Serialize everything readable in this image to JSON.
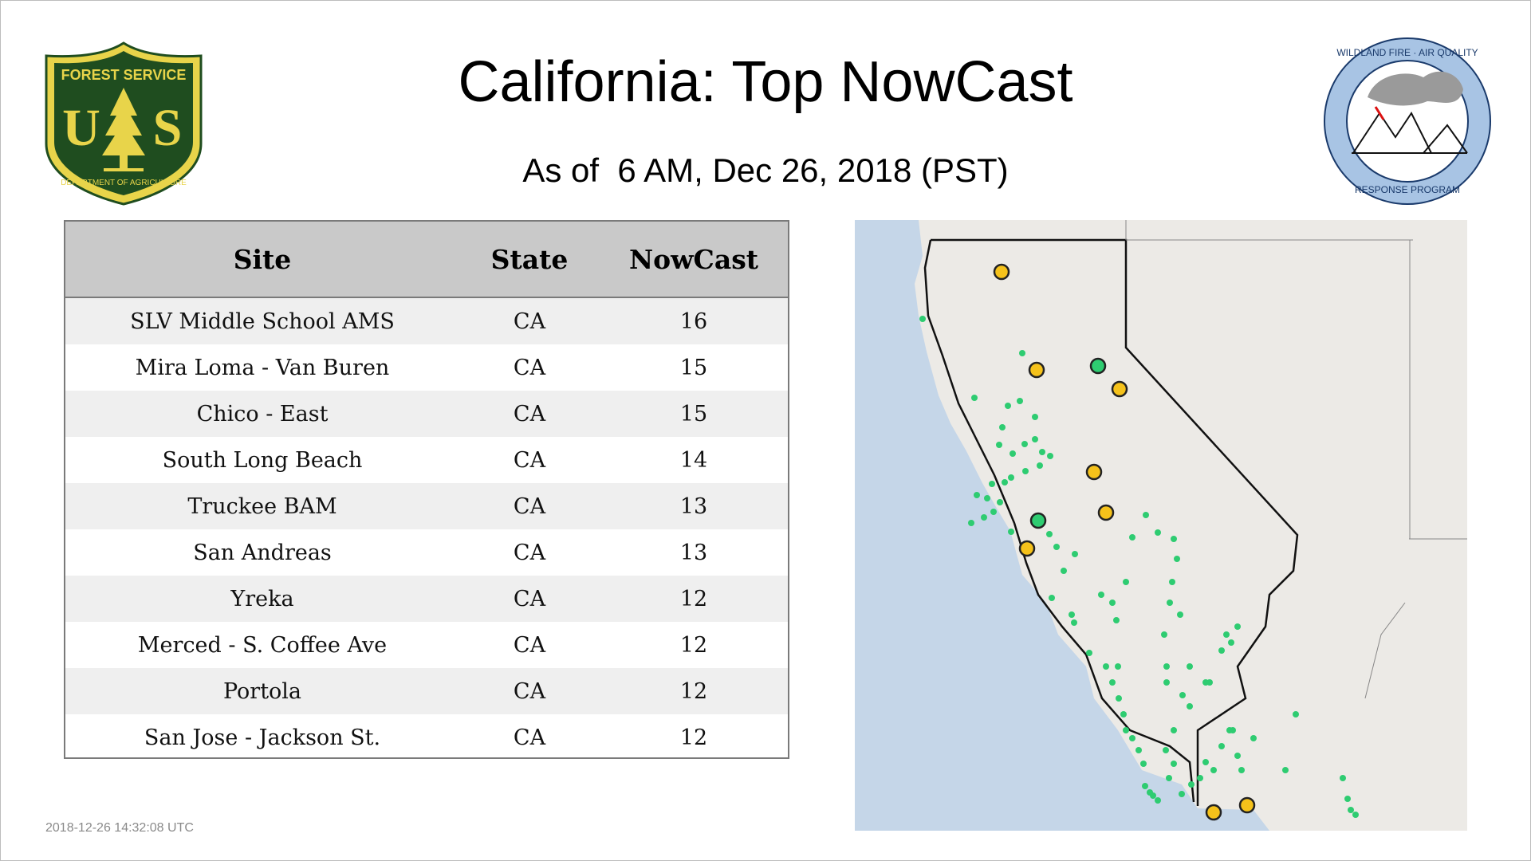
{
  "header": {
    "title": "California: Top NowCast",
    "subtitle": "As of  6 AM, Dec 26, 2018 (PST)"
  },
  "logos": {
    "left": {
      "top_text": "FOREST SERVICE",
      "letters": "US",
      "bottom_text": "DEPARTMENT OF AGRICULTURE",
      "colors": {
        "field": "#1f4d1f",
        "gold": "#e8d44a"
      }
    },
    "right": {
      "top_text": "WILDLAND FIRE · AIR QUALITY",
      "bottom_text": "RESPONSE PROGRAM",
      "colors": {
        "ring": "#a8c4e4",
        "text": "#1a3a6b"
      }
    }
  },
  "table": {
    "columns": [
      "Site",
      "State",
      "NowCast"
    ],
    "rows": [
      {
        "site": "SLV Middle School AMS",
        "state": "CA",
        "nowcast": "16"
      },
      {
        "site": "Mira Loma - Van Buren",
        "state": "CA",
        "nowcast": "15"
      },
      {
        "site": "Chico - East",
        "state": "CA",
        "nowcast": "15"
      },
      {
        "site": "South Long Beach",
        "state": "CA",
        "nowcast": "14"
      },
      {
        "site": "Truckee BAM",
        "state": "CA",
        "nowcast": "13"
      },
      {
        "site": "San Andreas",
        "state": "CA",
        "nowcast": "13"
      },
      {
        "site": "Yreka",
        "state": "CA",
        "nowcast": "12"
      },
      {
        "site": "Merced - S. Coffee Ave",
        "state": "CA",
        "nowcast": "12"
      },
      {
        "site": "Portola",
        "state": "CA",
        "nowcast": "12"
      },
      {
        "site": "San Jose - Jackson St.",
        "state": "CA",
        "nowcast": "12"
      }
    ]
  },
  "map": {
    "colors": {
      "ocean": "#c5d6e8",
      "land": "#eceae6",
      "state_line": "#111111",
      "good": "#2ecc71",
      "moderate": "#f5c21b",
      "marker_outline": "#222222"
    }
  },
  "footer": {
    "timestamp": "2018-12-26 14:32:08 UTC"
  }
}
